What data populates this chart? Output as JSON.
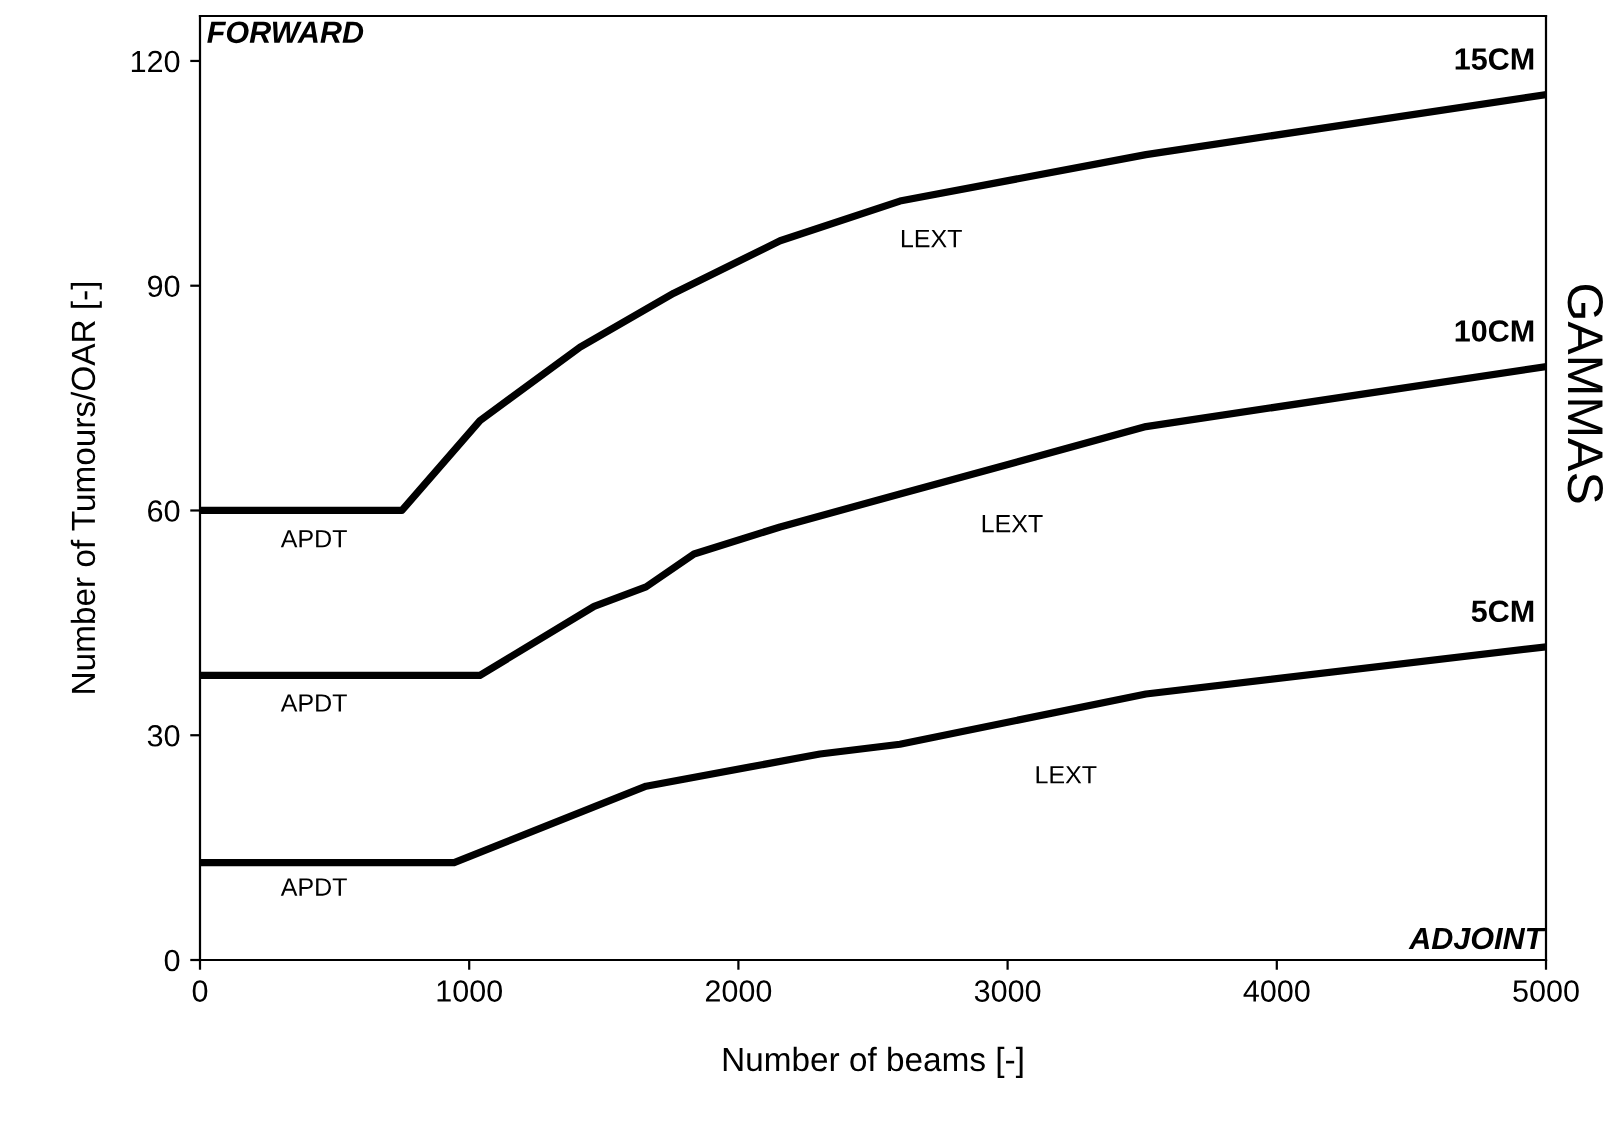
{
  "chart_data": {
    "type": "line",
    "xlabel": "Number of beams [-]",
    "ylabel": "Number of Tumours/OAR [-]",
    "xlim": [
      0,
      5000
    ],
    "ylim": [
      0,
      126
    ],
    "xticks": [
      0,
      1000,
      2000,
      3000,
      4000,
      5000
    ],
    "yticks": [
      0,
      30,
      60,
      90,
      120
    ],
    "grid": false,
    "legend": false,
    "marker": "none",
    "line_style": "solid",
    "series": [
      {
        "name": "15CM",
        "color": "#000000",
        "x": [
          0,
          750,
          1040,
          1412,
          1760,
          2155,
          2600,
          3514,
          4257,
          5000
        ],
        "values": [
          60,
          60,
          72,
          81.8,
          89,
          96,
          101.3,
          107.5,
          111.5,
          115.5
        ]
      },
      {
        "name": "10CM",
        "color": "#000000",
        "x": [
          0,
          1040,
          1464,
          1657,
          1835,
          2155,
          2600,
          3514,
          5000
        ],
        "values": [
          38,
          38,
          47.2,
          49.8,
          54.2,
          57.8,
          62.2,
          71.2,
          79.2
        ]
      },
      {
        "name": "5CM",
        "color": "#000000",
        "x": [
          0,
          944,
          1657,
          2303,
          2600,
          3514,
          5000
        ],
        "values": [
          13,
          13,
          23.2,
          27.5,
          28.8,
          35.5,
          41.8
        ]
      }
    ],
    "annotations": [
      "FORWARD",
      "ADJOINT",
      "GAMMAS",
      "APDT",
      "APDT",
      "APDT",
      "LEXT",
      "LEXT",
      "LEXT"
    ]
  }
}
